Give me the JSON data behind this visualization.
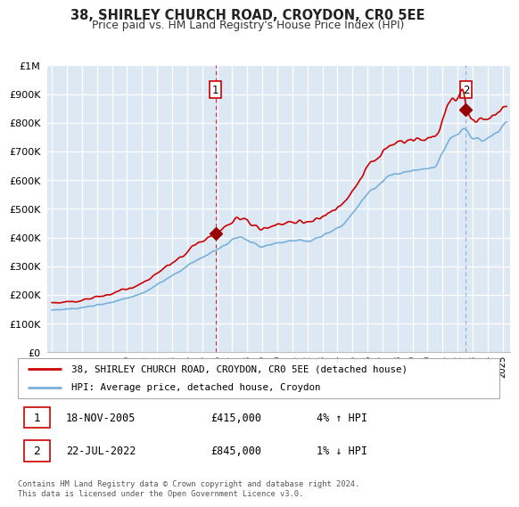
{
  "title": "38, SHIRLEY CHURCH ROAD, CROYDON, CR0 5EE",
  "subtitle": "Price paid vs. HM Land Registry's House Price Index (HPI)",
  "legend_line1": "38, SHIRLEY CHURCH ROAD, CROYDON, CR0 5EE (detached house)",
  "legend_line2": "HPI: Average price, detached house, Croydon",
  "annotation1_date": "18-NOV-2005",
  "annotation1_price": "£415,000",
  "annotation1_hpi": "4% ↑ HPI",
  "annotation2_date": "22-JUL-2022",
  "annotation2_price": "£845,000",
  "annotation2_hpi": "1% ↓ HPI",
  "footnote": "Contains HM Land Registry data © Crown copyright and database right 2024.\nThis data is licensed under the Open Government Licence v3.0.",
  "sale1_year": 2005.88,
  "sale1_price": 415000,
  "sale2_year": 2022.55,
  "sale2_price": 845000,
  "hpi_line_color": "#7ab0d8",
  "price_line_color": "#cc0000",
  "dot_color": "#990000",
  "background_color": "#dce9f5",
  "ylim_min": 0,
  "ylim_max": 1000000,
  "xlim_min": 1994.7,
  "xlim_max": 2025.5
}
